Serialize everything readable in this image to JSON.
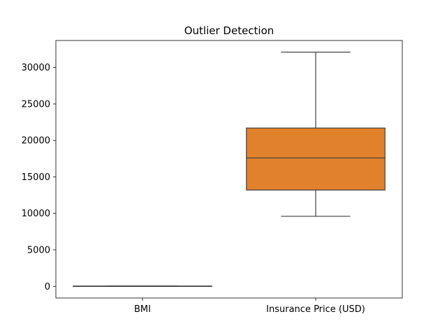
{
  "chart_data": {
    "type": "box",
    "title": "Outlier Detection",
    "xlabel": "",
    "ylabel": "",
    "ylim": [
      -1600,
      33700
    ],
    "y_ticks": [
      0,
      5000,
      10000,
      15000,
      20000,
      25000,
      30000
    ],
    "y_tick_labels": [
      "0",
      "5000",
      "10000",
      "15000",
      "20000",
      "25000",
      "30000"
    ],
    "grid": false,
    "categories": [
      "BMI",
      "Insurance Price (USD)"
    ],
    "boxes": [
      {
        "category": "BMI",
        "whisker_low": 16,
        "q1": 26,
        "median": 30,
        "q3": 34,
        "whisker_high": 46,
        "color": "#3a75af"
      },
      {
        "category": "Insurance Price (USD)",
        "whisker_low": 9600,
        "q1": 13200,
        "median": 17600,
        "q3": 21700,
        "whisker_high": 32100,
        "color": "#e1812c"
      }
    ]
  }
}
